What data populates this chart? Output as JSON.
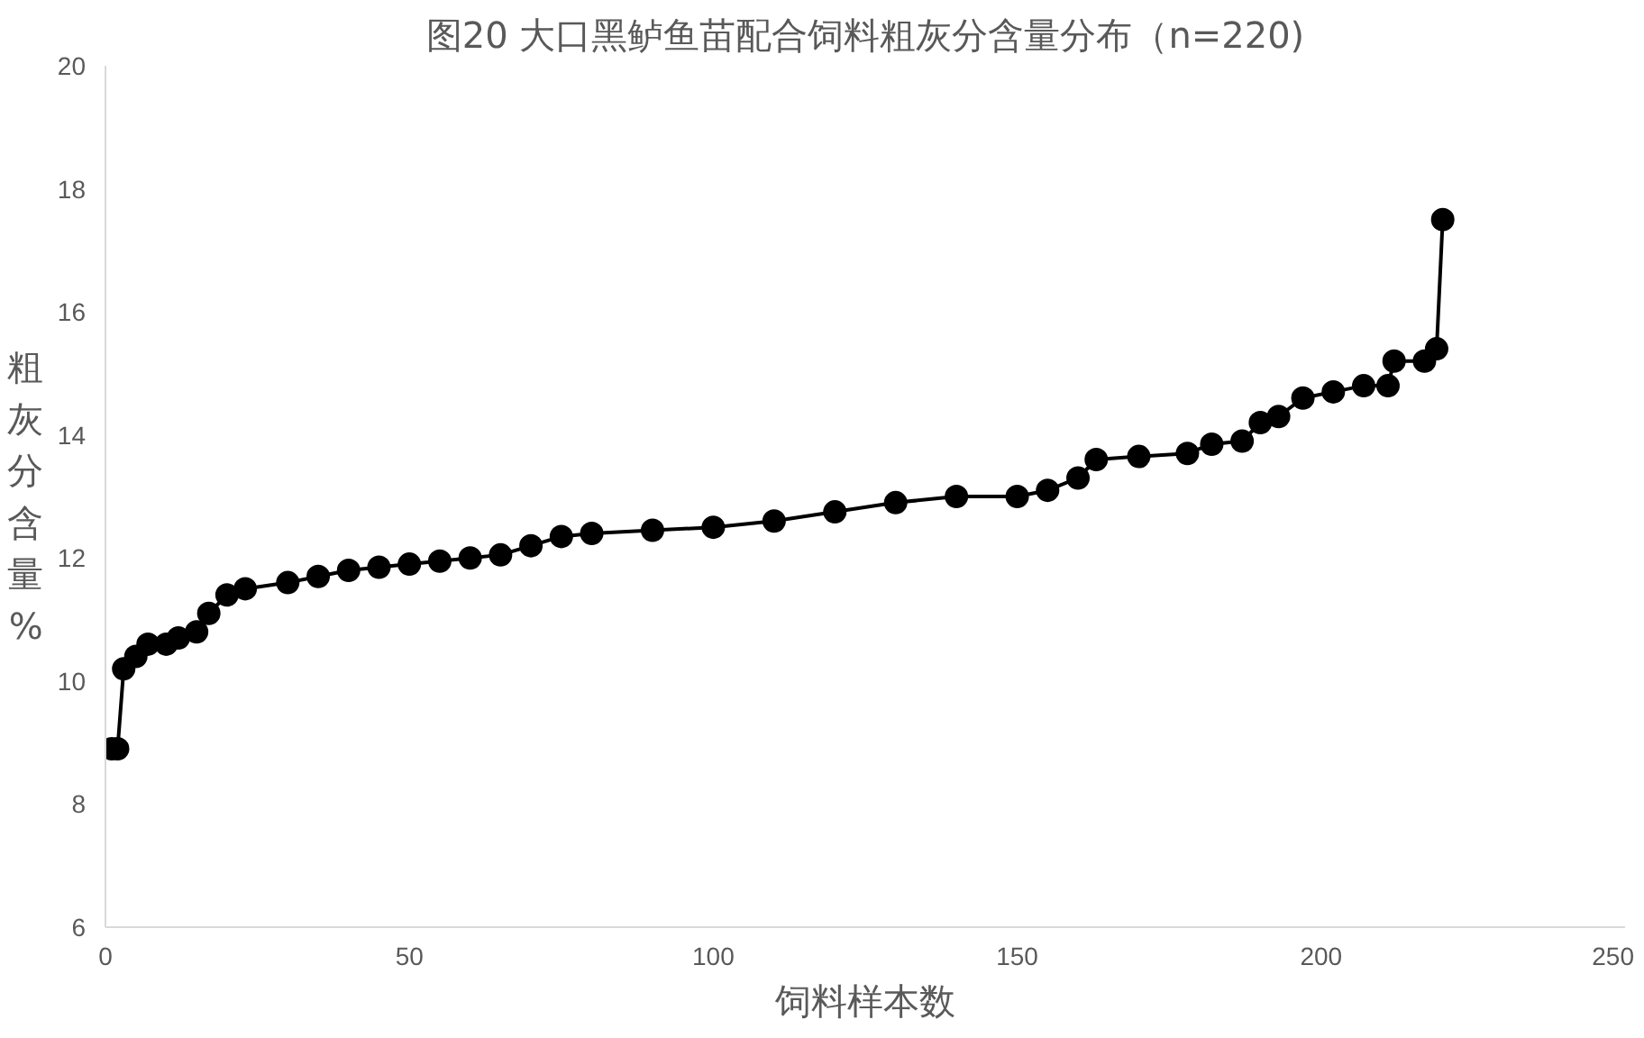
{
  "chart_data": {
    "type": "line",
    "title": "图20 大口黑鲈鱼苗配合饲料粗灰分含量分布（n=220)",
    "xlabel": "饲料样本数",
    "ylabel": "粗灰分含量%",
    "x": [
      1,
      2,
      3,
      5,
      7,
      10,
      12,
      15,
      17,
      20,
      23,
      30,
      35,
      40,
      45,
      50,
      55,
      60,
      65,
      70,
      75,
      80,
      90,
      100,
      110,
      120,
      130,
      140,
      150,
      155,
      160,
      163,
      170,
      178,
      182,
      187,
      190,
      193,
      197,
      202,
      207,
      211,
      212,
      217,
      219,
      220
    ],
    "series": [
      {
        "color": "#000000",
        "values": [
          8.9,
          8.9,
          10.2,
          10.4,
          10.6,
          10.6,
          10.7,
          10.8,
          11.1,
          11.4,
          11.5,
          11.6,
          11.7,
          11.8,
          11.85,
          11.9,
          11.95,
          12.0,
          12.05,
          12.2,
          12.35,
          12.4,
          12.45,
          12.5,
          12.6,
          12.75,
          12.9,
          13.0,
          13.0,
          13.1,
          13.3,
          13.6,
          13.65,
          13.7,
          13.85,
          13.9,
          14.2,
          14.3,
          14.6,
          14.7,
          14.8,
          14.8,
          15.2,
          15.2,
          15.4,
          17.5
        ]
      }
    ],
    "xlim": [
      0,
      250
    ],
    "xticks": [
      0,
      50,
      100,
      150,
      200,
      250
    ],
    "ylim": [
      6,
      20
    ],
    "yticks": [
      6,
      8,
      10,
      12,
      14,
      16,
      18,
      20
    ],
    "grid": false,
    "marker": "circle",
    "line_style": "solid"
  }
}
